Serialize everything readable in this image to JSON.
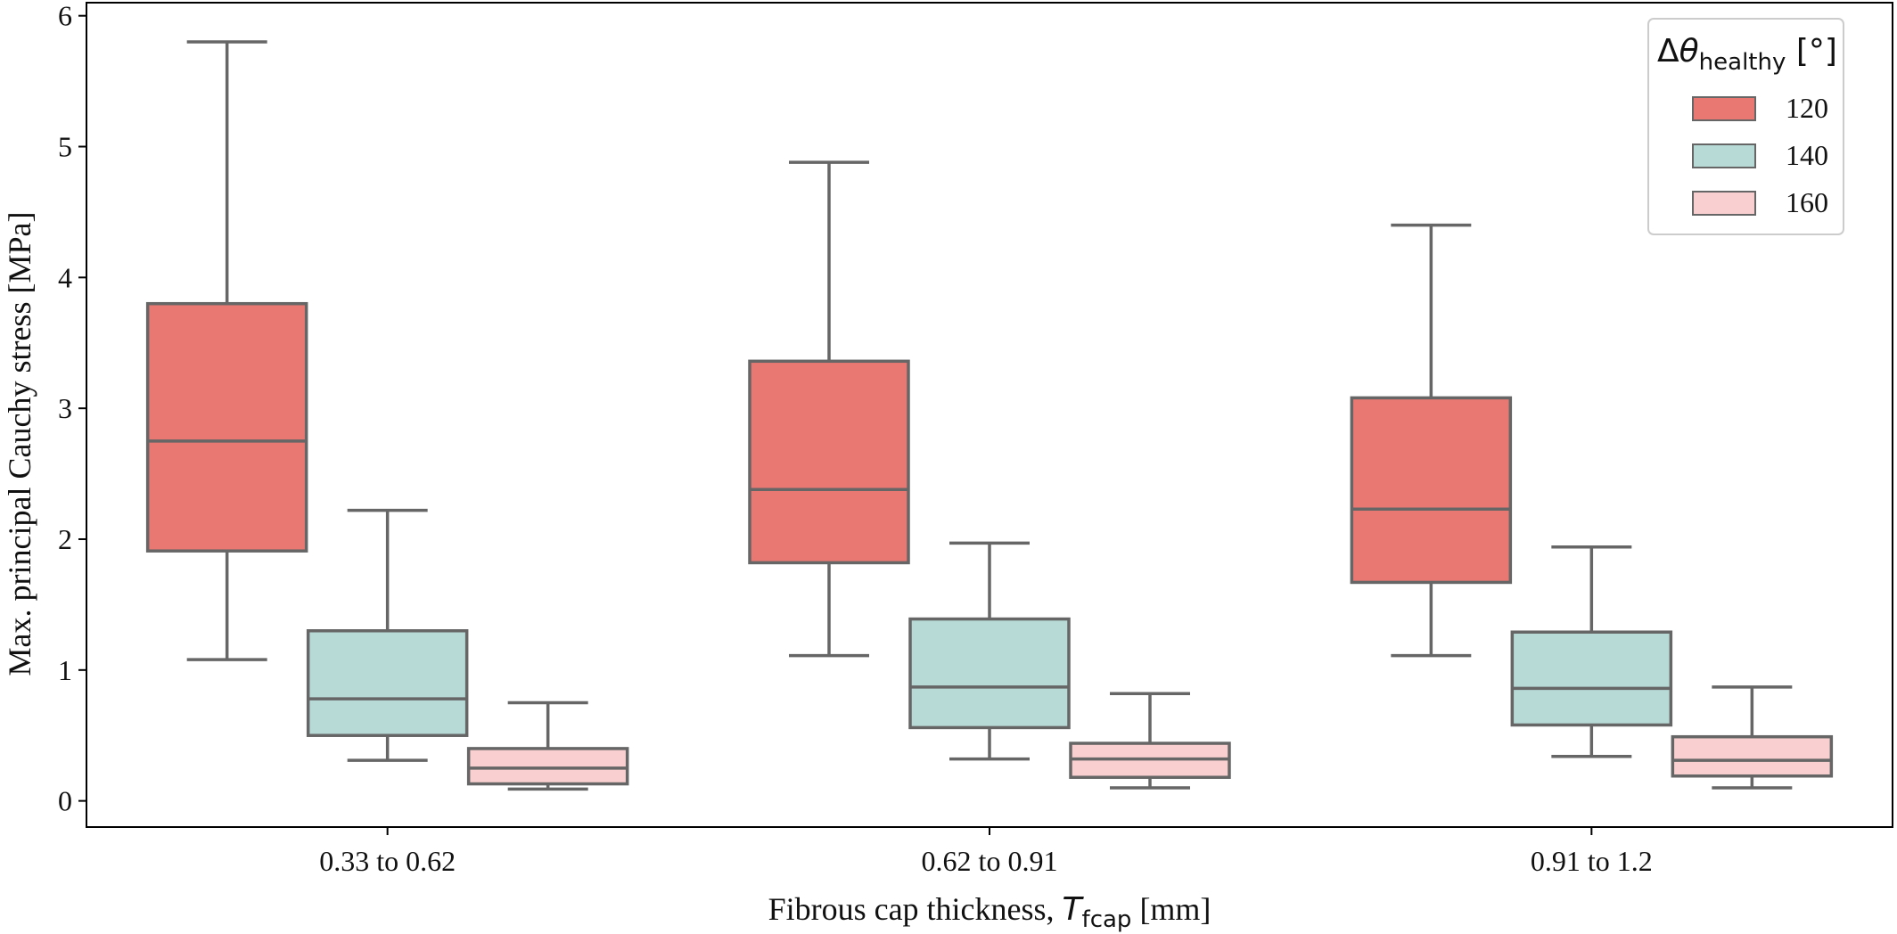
{
  "chart_data": {
    "type": "box",
    "xlabel": {
      "prefix": "Fibrous cap thickness, ",
      "symbol": "T",
      "subscript": "fcap",
      "suffix": " [mm]"
    },
    "ylabel": "Max. principal Cauchy stress [MPa]",
    "ylim": [
      -0.2,
      6.1
    ],
    "yticks": [
      "0",
      "1",
      "2",
      "3",
      "4",
      "5",
      "6"
    ],
    "categories": [
      "0.33 to 0.62",
      "0.62 to 0.91",
      "0.91 to 1.2"
    ],
    "legend": {
      "title_prefix": "Δ",
      "title_symbol": "θ",
      "title_subscript": "healthy",
      "title_suffix": " [°]",
      "placement": "top-right"
    },
    "series": [
      {
        "name": "120",
        "color": "#e97872",
        "boxes": [
          {
            "whislo": 1.08,
            "q1": 1.91,
            "med": 2.75,
            "q3": 3.8,
            "whishi": 5.8
          },
          {
            "whislo": 1.11,
            "q1": 1.82,
            "med": 2.38,
            "q3": 3.36,
            "whishi": 4.88
          },
          {
            "whislo": 1.11,
            "q1": 1.67,
            "med": 2.23,
            "q3": 3.08,
            "whishi": 4.4
          }
        ]
      },
      {
        "name": "140",
        "color": "#b7dad7",
        "boxes": [
          {
            "whislo": 0.31,
            "q1": 0.5,
            "med": 0.78,
            "q3": 1.3,
            "whishi": 2.22
          },
          {
            "whislo": 0.32,
            "q1": 0.56,
            "med": 0.87,
            "q3": 1.39,
            "whishi": 1.97
          },
          {
            "whislo": 0.34,
            "q1": 0.58,
            "med": 0.86,
            "q3": 1.29,
            "whishi": 1.94
          }
        ]
      },
      {
        "name": "160",
        "color": "#f9cfcf",
        "boxes": [
          {
            "whislo": 0.09,
            "q1": 0.13,
            "med": 0.25,
            "q3": 0.4,
            "whishi": 0.75
          },
          {
            "whislo": 0.1,
            "q1": 0.18,
            "med": 0.32,
            "q3": 0.44,
            "whishi": 0.82
          },
          {
            "whislo": 0.1,
            "q1": 0.19,
            "med": 0.31,
            "q3": 0.49,
            "whishi": 0.87
          }
        ]
      }
    ],
    "line_color": "#666666"
  }
}
